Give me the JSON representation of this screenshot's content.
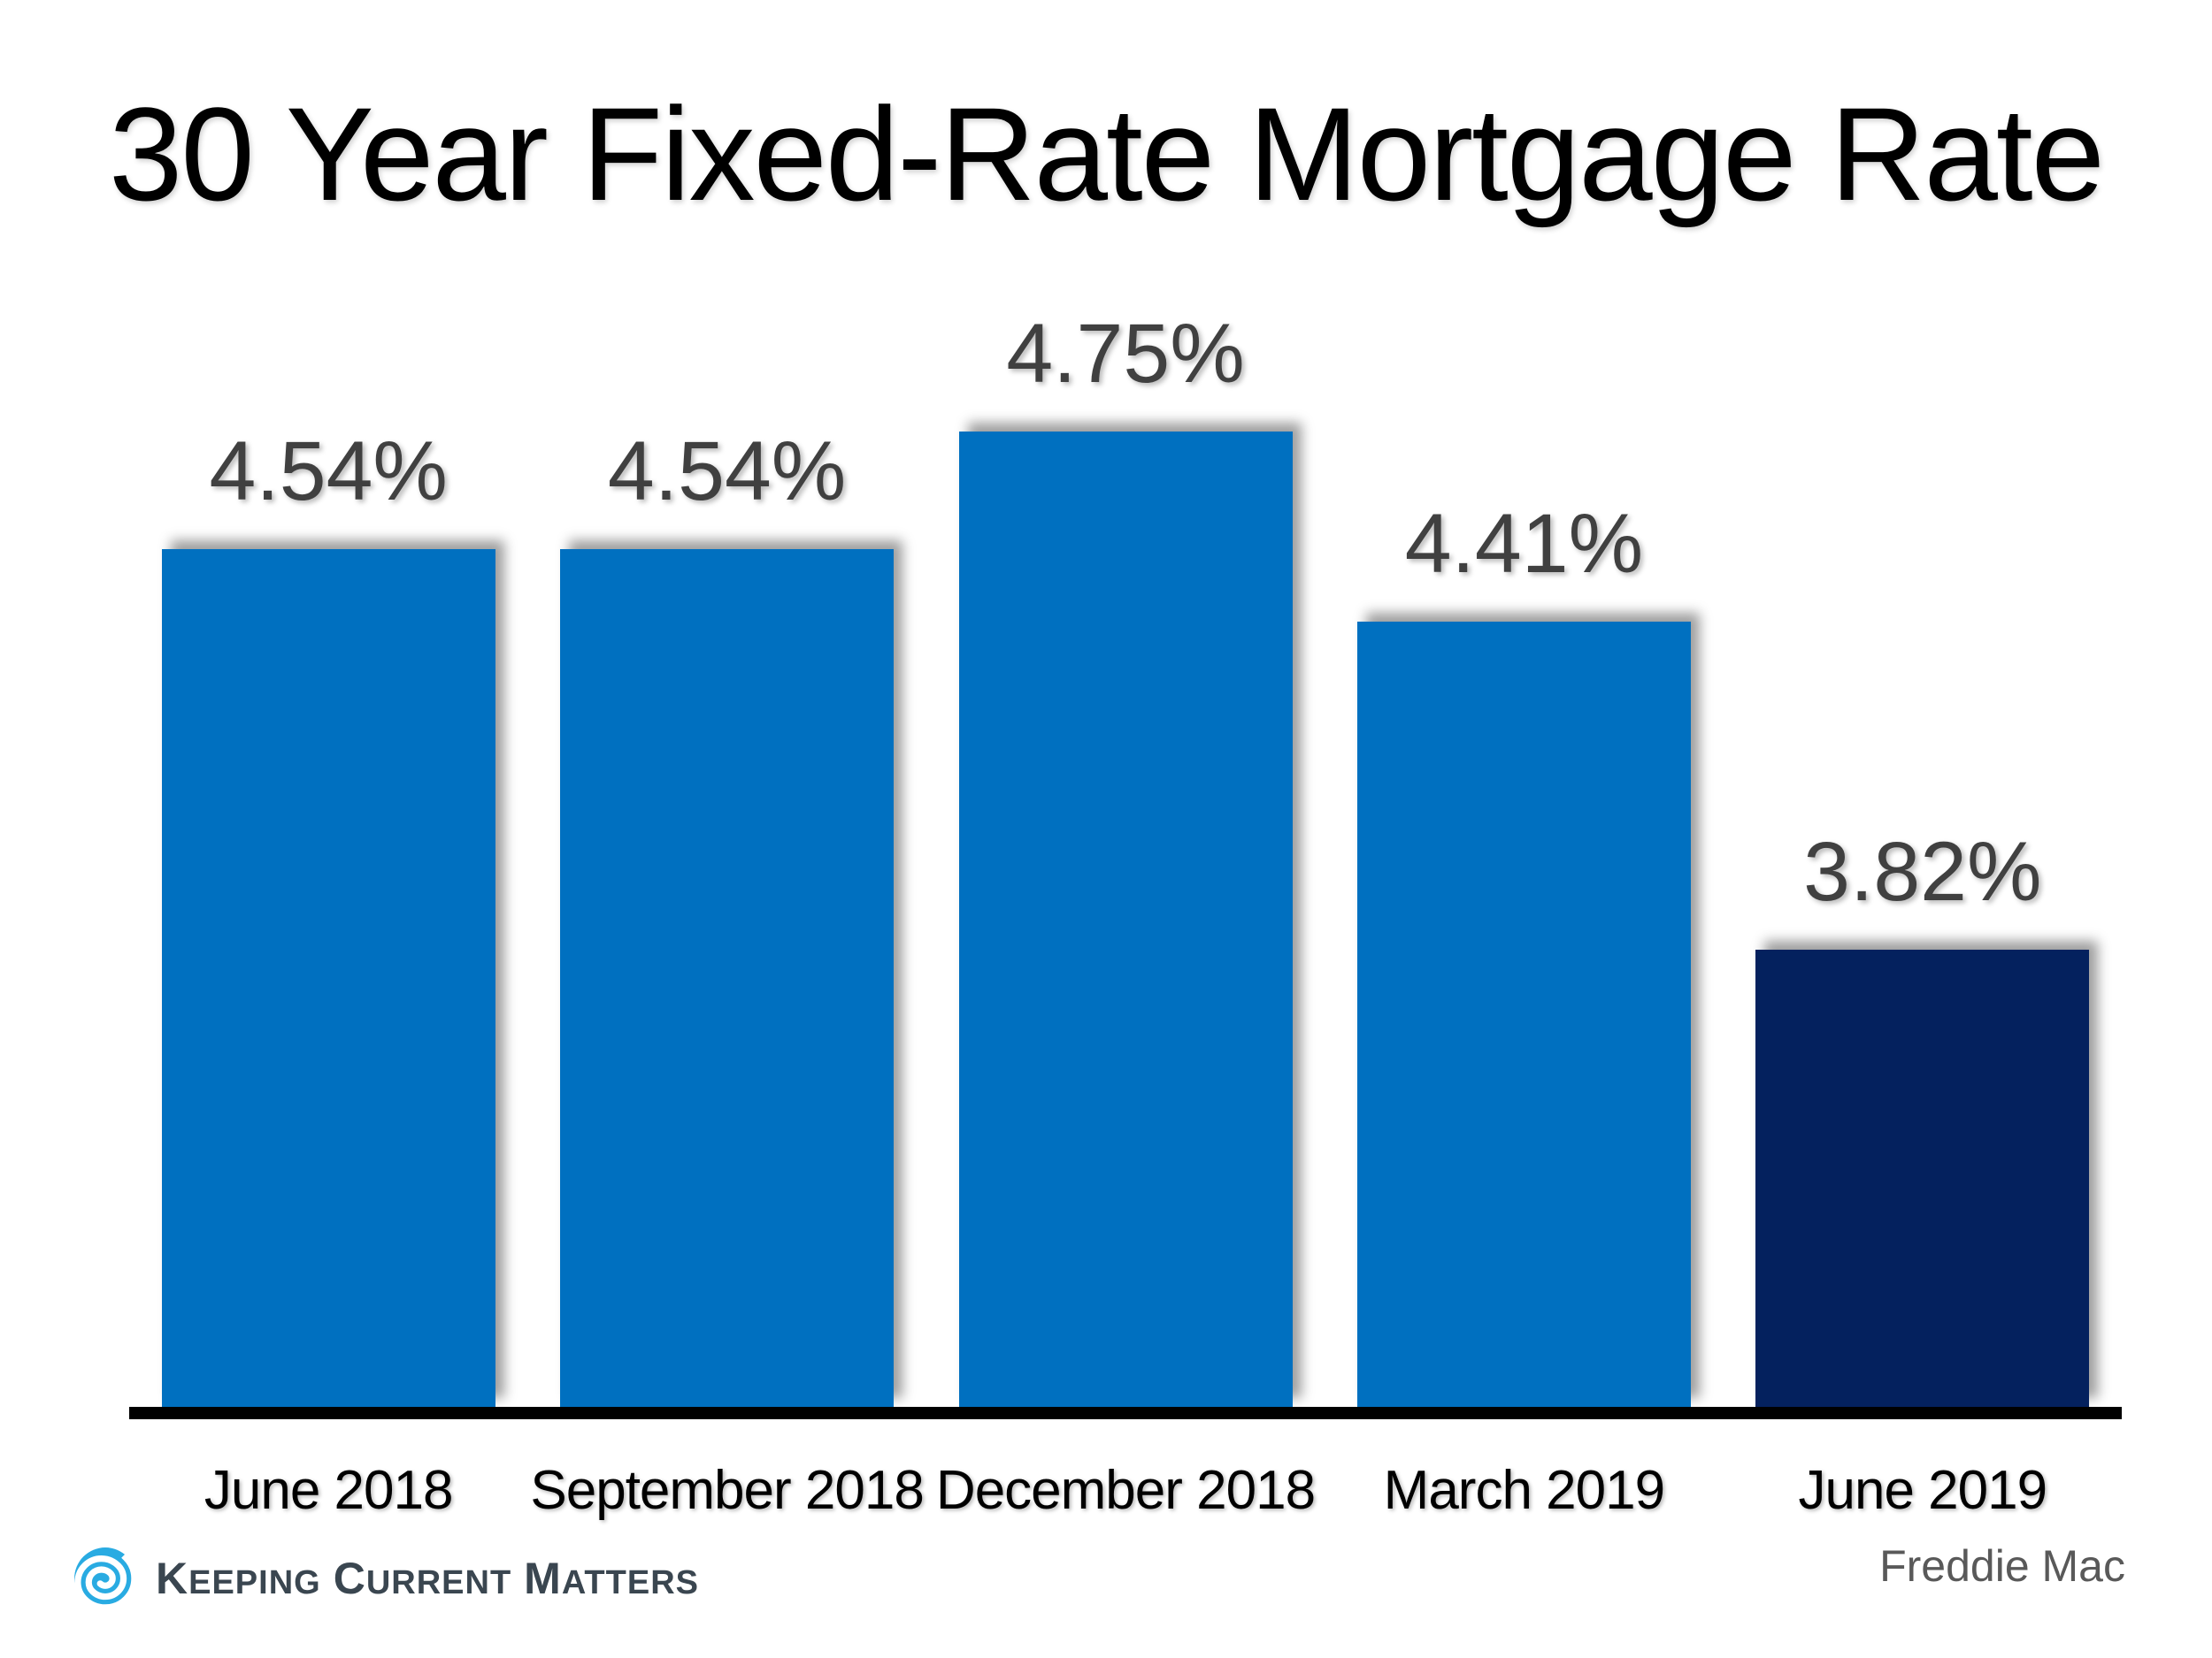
{
  "chart_data": {
    "type": "bar",
    "title": "30 Year Fixed-Rate Mortgage Rate",
    "categories": [
      "June 2018",
      "September 2018",
      "December 2018",
      "March 2019",
      "June 2019"
    ],
    "values": [
      4.54,
      4.54,
      4.75,
      4.41,
      3.82
    ],
    "value_labels": [
      "4.54%",
      "4.54%",
      "4.75%",
      "4.41%",
      "3.82%"
    ],
    "ylim": [
      3.0,
      5.0
    ],
    "xlabel": "",
    "ylabel": "",
    "grid": false,
    "legend": false,
    "bar_colors": [
      "#0070C0",
      "#0070C0",
      "#0070C0",
      "#0070C0",
      "#04215E"
    ],
    "source": "Freddie Mac"
  },
  "footer": {
    "source_label": "Freddie Mac",
    "logo": {
      "name": "Keeping Current Matters",
      "icon": "swirl-icon",
      "words": [
        {
          "initial": "K",
          "rest": "EEPING"
        },
        {
          "initial": "C",
          "rest": "URRENT"
        },
        {
          "initial": "M",
          "rest": "ATTERS"
        }
      ]
    }
  },
  "colors": {
    "background": "#FFFFFF",
    "bar_blue": "#0070C0",
    "bar_navy": "#04215E",
    "value_label": "#404040",
    "axis_text": "#000000",
    "axis_line": "#000000",
    "source_gray": "#595959",
    "logo_text": "#3A4650",
    "logo_icon": "#29ABE2"
  }
}
